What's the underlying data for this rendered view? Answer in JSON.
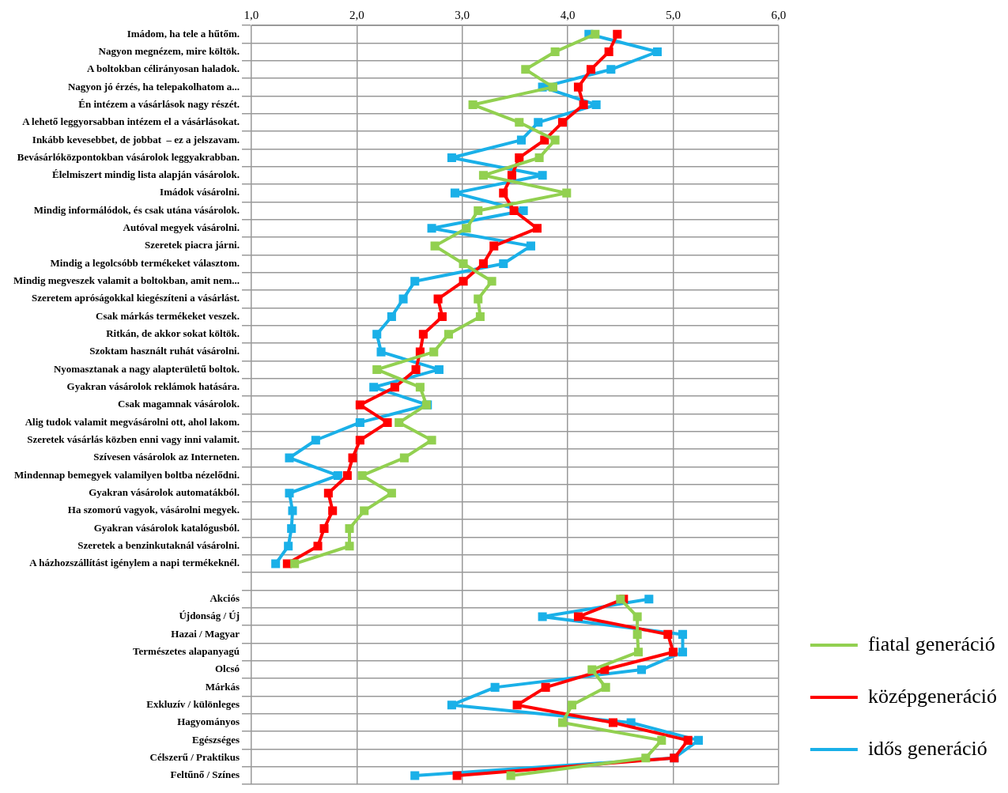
{
  "chart_data": {
    "type": "line",
    "orientation": "horizontal",
    "categories": [
      "Imádom, ha tele a hűtőm.",
      "Nagyon megnézem, mire költök.",
      "A boltokban célirányosan haladok.",
      "Nagyon jó érzés, ha telepakolhatom a...",
      "Én intézem a vásárlások nagy részét.",
      "A lehető leggyorsabban intézem el a vásárlásokat.",
      "Inkább kevesebbet, de jobbat  – ez a jelszavam.",
      "Bevásárlóközpontokban vásárolok leggyakrabban.",
      "Élelmiszert mindig lista alapján vásárolok.",
      "Imádok vásárolni.",
      "Mindig informálódok, és csak utána vásárolok.",
      "Autóval megyek vásárolni.",
      "Szeretek piacra járni.",
      "Mindig a legolcsóbb termékeket választom.",
      "Mindig megveszek valamit a boltokban, amit nem...",
      "Szeretem apróságokkal kiegészíteni a vásárlást.",
      "Csak márkás termékeket veszek.",
      "Ritkán, de akkor sokat költök.",
      "Szoktam használt ruhát vásárolni.",
      "Nyomasztanak a nagy alapterületű boltok.",
      "Gyakran vásárolok reklámok hatására.",
      "Csak magamnak vásárolok.",
      "Alig tudok valamit megvásárolni ott, ahol lakom.",
      "Szeretek vásárlás közben enni vagy inni valamit.",
      "Szívesen vásárolok az Interneten.",
      "Mindennap bemegyek valamilyen boltba nézelődni.",
      "Gyakran vásárolok automatákból.",
      "Ha szomorú vagyok, vásárolni megyek.",
      "Gyakran vásárolok katalógusból.",
      "Szeretek a benzinkutaknál vásárolni.",
      "A házhozszállítást igénylem a napi termékeknél.",
      null,
      "Akciós",
      "Újdonság / Új",
      "Hazai / Magyar",
      "Természetes alapanyagú",
      "Olcsó",
      "Márkás",
      "Exkluzív / különleges",
      "Hagyományos",
      "Egészséges",
      "Célszerű / Praktikus",
      "Feltűnő / Színes"
    ],
    "series": [
      {
        "name": "fiatal generáció",
        "color": "#92d050",
        "values": [
          4.26,
          3.88,
          3.6,
          3.86,
          3.1,
          3.54,
          3.88,
          3.73,
          3.2,
          3.99,
          3.15,
          3.04,
          2.74,
          3.01,
          3.28,
          3.15,
          3.17,
          2.87,
          2.73,
          2.19,
          2.6,
          2.66,
          2.4,
          2.71,
          2.45,
          2.05,
          2.33,
          2.07,
          1.93,
          1.93,
          1.41,
          null,
          4.5,
          4.66,
          4.66,
          4.67,
          4.23,
          4.36,
          4.04,
          3.95,
          4.89,
          4.74,
          3.46
        ]
      },
      {
        "name": "középgeneráció",
        "color": "#ff0000",
        "values": [
          4.47,
          4.39,
          4.22,
          4.1,
          4.15,
          3.95,
          3.78,
          3.54,
          3.47,
          3.39,
          3.49,
          3.71,
          3.3,
          3.2,
          3.01,
          2.77,
          2.81,
          2.63,
          2.6,
          2.56,
          2.36,
          2.03,
          2.29,
          2.03,
          1.96,
          1.91,
          1.73,
          1.77,
          1.69,
          1.63,
          1.34,
          null,
          4.53,
          4.1,
          4.95,
          5.0,
          4.35,
          3.79,
          3.52,
          4.43,
          5.14,
          5.01,
          2.95
        ]
      },
      {
        "name": "idős generáció",
        "color": "#1ab0e8",
        "values": [
          4.2,
          4.85,
          4.41,
          3.76,
          4.27,
          3.72,
          3.56,
          2.9,
          3.76,
          2.93,
          3.58,
          2.71,
          3.65,
          3.39,
          2.55,
          2.44,
          2.33,
          2.19,
          2.23,
          2.78,
          2.16,
          2.67,
          2.03,
          1.61,
          1.36,
          1.82,
          1.36,
          1.39,
          1.38,
          1.35,
          1.23,
          null,
          4.77,
          3.76,
          5.09,
          5.09,
          4.7,
          3.31,
          2.9,
          4.6,
          5.24,
          5.01,
          2.55
        ]
      }
    ],
    "xlim": [
      1,
      6
    ],
    "xticks": [
      {
        "value": 1,
        "label": "1,0"
      },
      {
        "value": 2,
        "label": "2,0"
      },
      {
        "value": 3,
        "label": "3,0"
      },
      {
        "value": 4,
        "label": "4,0"
      },
      {
        "value": 5,
        "label": "5,0"
      },
      {
        "value": 6,
        "label": "6,0"
      }
    ],
    "grid": true,
    "legend": "bottom right",
    "marker": "square",
    "line_style": "solid"
  }
}
